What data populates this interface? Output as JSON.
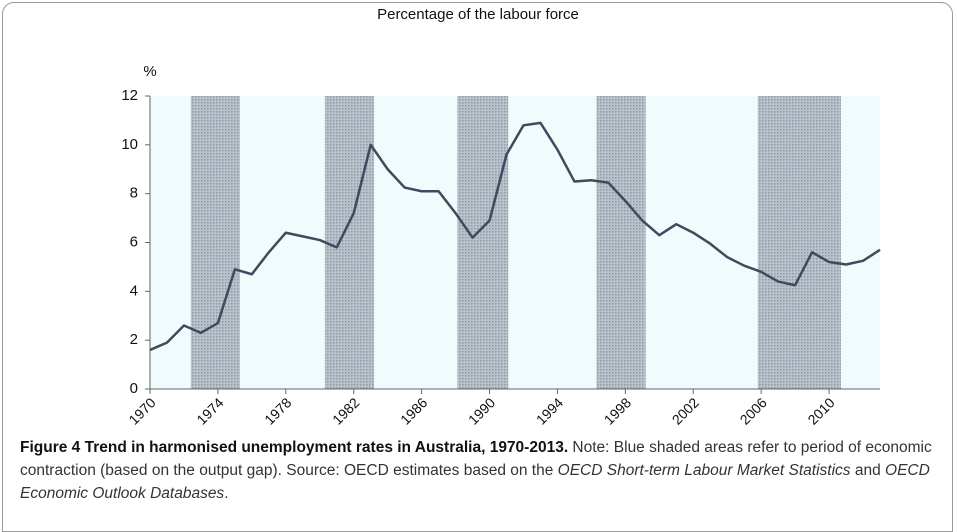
{
  "chart_data": {
    "type": "line",
    "title": "Percentage of the labour force",
    "y_label": "%",
    "x": [
      1970,
      1971,
      1972,
      1973,
      1974,
      1975,
      1976,
      1977,
      1978,
      1979,
      1980,
      1981,
      1982,
      1983,
      1984,
      1985,
      1986,
      1987,
      1988,
      1989,
      1990,
      1991,
      1992,
      1993,
      1994,
      1995,
      1996,
      1997,
      1998,
      1999,
      2000,
      2001,
      2002,
      2003,
      2004,
      2005,
      2006,
      2007,
      2008,
      2009,
      2010,
      2011,
      2012,
      2013
    ],
    "series": [
      {
        "name": "Unemployment rate",
        "color": "#3f4a5e",
        "values": [
          1.6,
          1.9,
          2.6,
          2.3,
          2.7,
          4.9,
          4.7,
          5.6,
          6.4,
          6.25,
          6.1,
          5.8,
          7.2,
          10.0,
          9.0,
          8.25,
          8.1,
          8.1,
          7.2,
          6.2,
          6.9,
          9.6,
          10.8,
          10.9,
          9.8,
          8.5,
          8.55,
          8.45,
          7.7,
          6.9,
          6.3,
          6.75,
          6.4,
          5.95,
          5.4,
          5.05,
          4.8,
          4.4,
          4.25,
          5.6,
          5.2,
          5.1,
          5.25,
          5.7
        ]
      }
    ],
    "shaded_periods": [
      [
        1972.4,
        1975.3
      ],
      [
        1980.3,
        1983.2
      ],
      [
        1988.1,
        1991.1
      ],
      [
        1996.3,
        1999.2
      ],
      [
        2005.8,
        2010.7
      ]
    ],
    "xlim": [
      1970,
      2013
    ],
    "xticks": [
      1970,
      1974,
      1978,
      1982,
      1986,
      1990,
      1994,
      1998,
      2002,
      2006,
      2010
    ],
    "ylim": [
      0,
      12
    ],
    "yticks": [
      0,
      2,
      4,
      6,
      8,
      10,
      12
    ],
    "grid": false
  },
  "caption": {
    "title": "Figure 4 Trend in harmonised unemployment rates in Australia, 1970-2013.",
    "text_1": " Note: Blue shaded areas refer to period of economic contraction (based on the output gap). Source: OECD estimates based on the ",
    "italic_1": "OECD Short-term Labour Market Statistics",
    "text_2": " and ",
    "italic_2": "OECD Economic Outlook Databases",
    "text_3": "."
  }
}
